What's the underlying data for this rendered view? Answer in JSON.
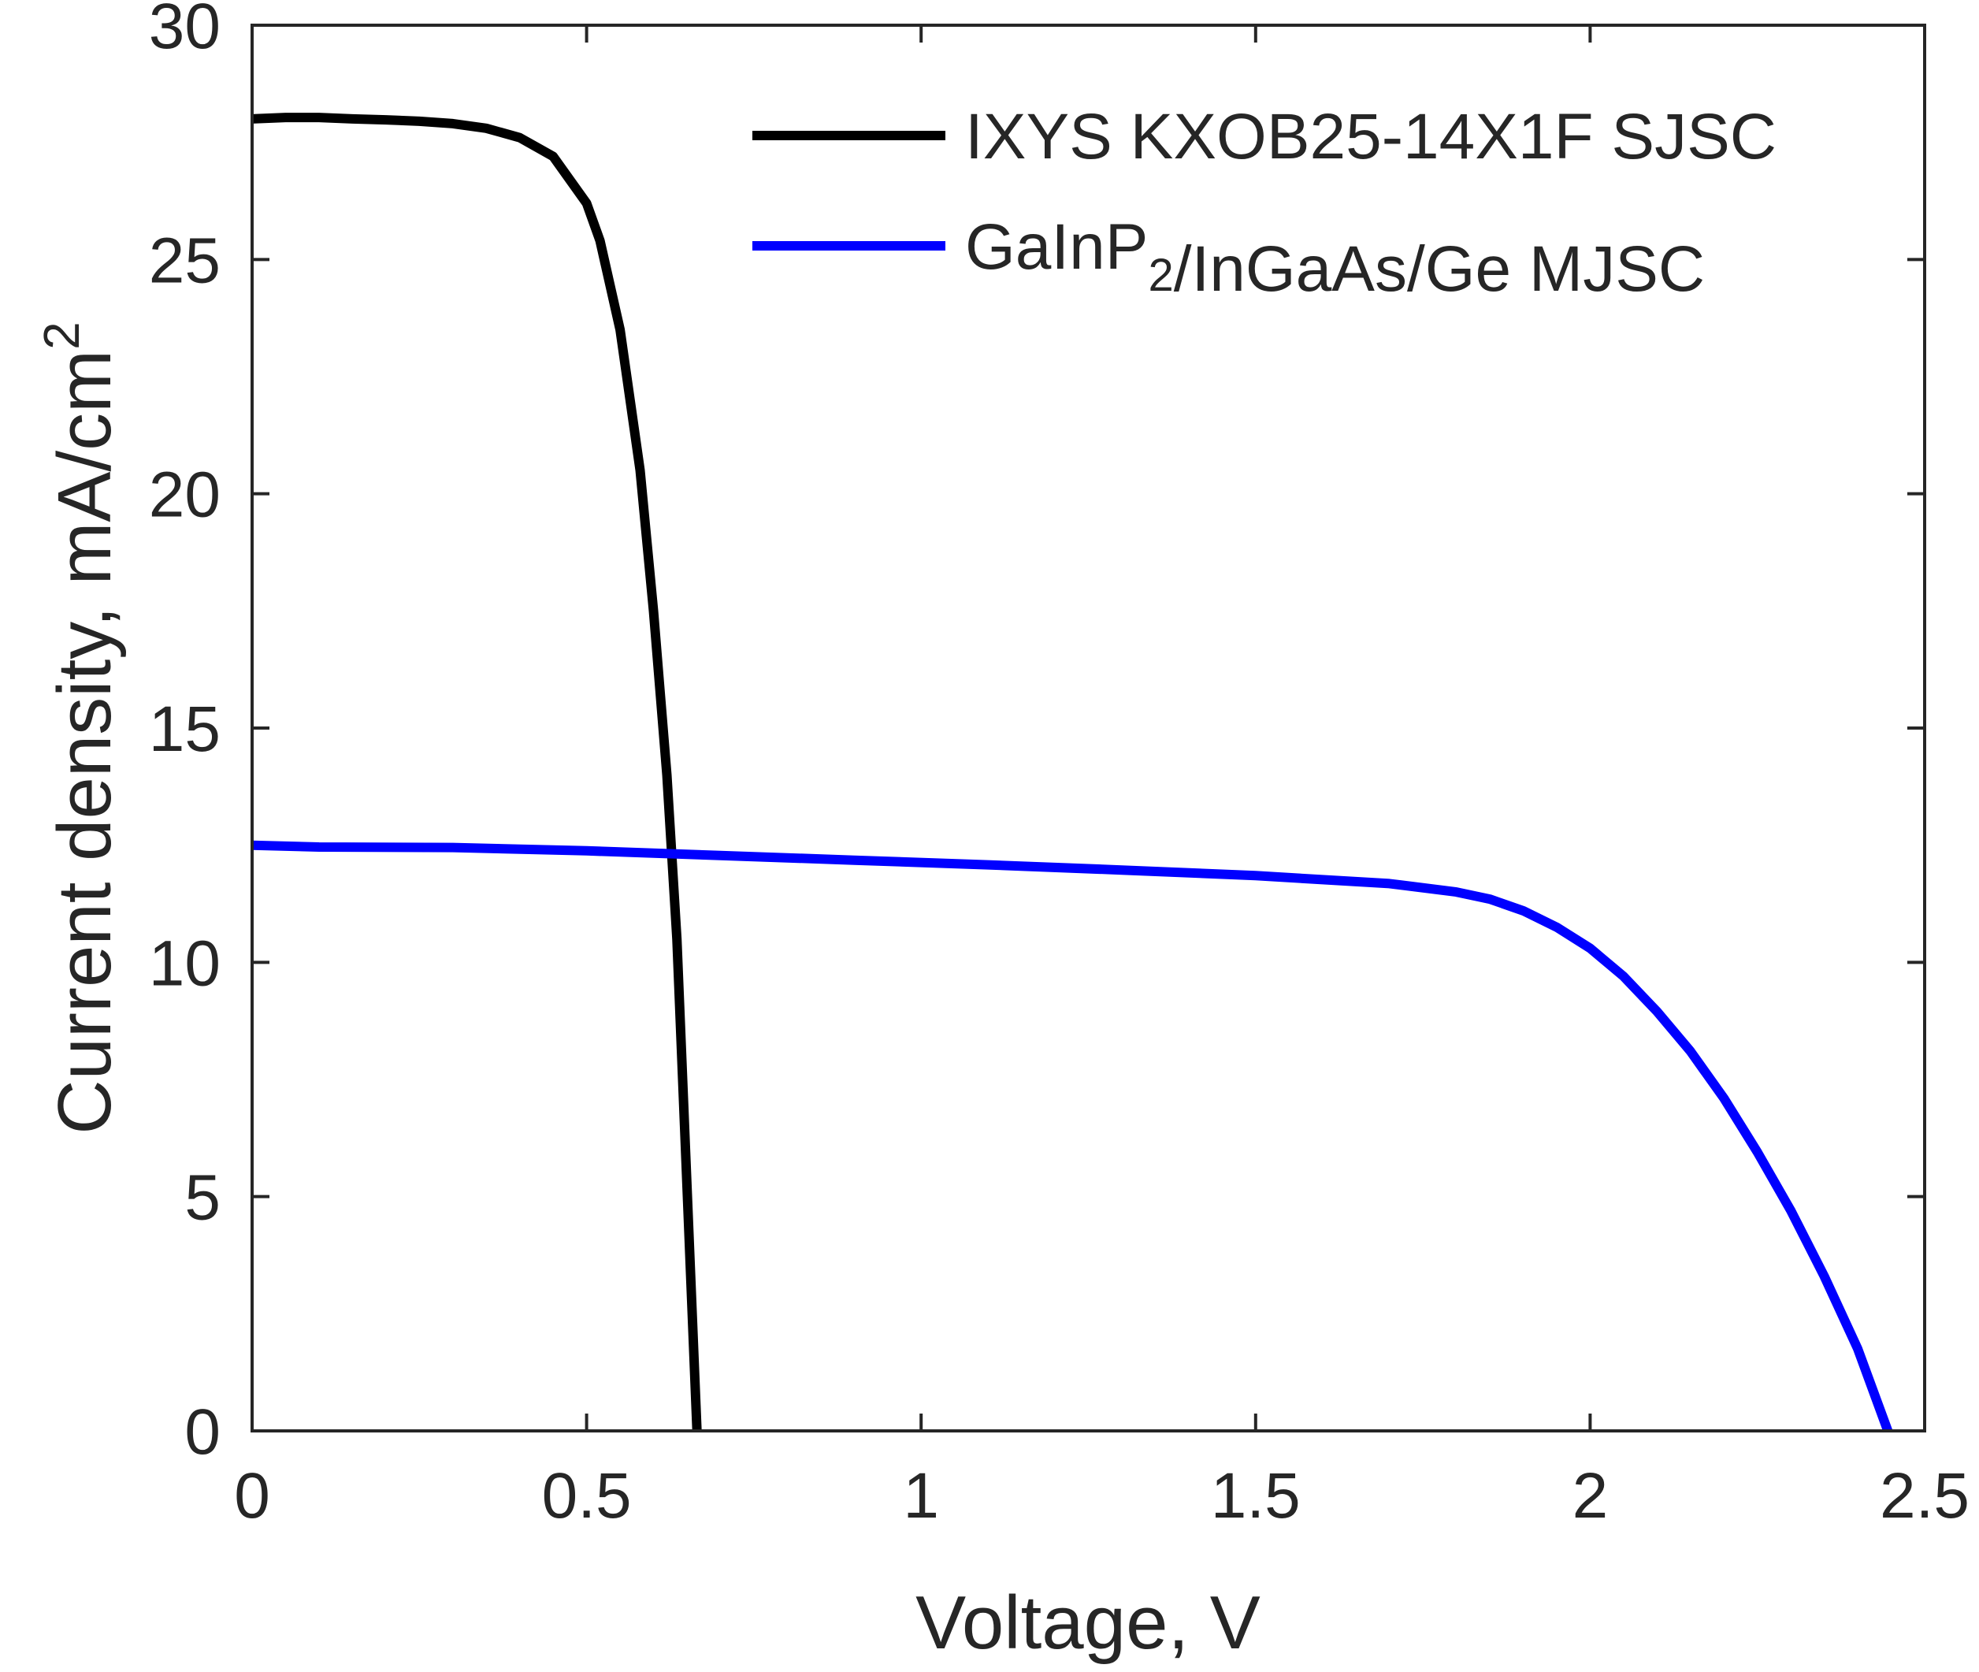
{
  "chart_data": {
    "type": "line",
    "title": "",
    "xlabel": "Voltage, V",
    "ylabel": "Current density, mA/cm",
    "ylabel_superscript": "2",
    "xlim": [
      0,
      2.5
    ],
    "ylim": [
      0,
      30
    ],
    "x_ticks": [
      0,
      0.5,
      1,
      1.5,
      2,
      2.5
    ],
    "x_tick_labels": [
      "0",
      "0.5",
      "1",
      "1.5",
      "2",
      "2.5"
    ],
    "y_ticks": [
      0,
      5,
      10,
      15,
      20,
      25,
      30
    ],
    "y_tick_labels": [
      "0",
      "5",
      "10",
      "15",
      "20",
      "25",
      "30"
    ],
    "grid": false,
    "legend_position": "top-right",
    "series": [
      {
        "name": "IXYS KXOB25-14X1F SJSC",
        "legend_parts": [
          {
            "text": "IXYS KXOB25-14X1F SJSC",
            "sub": ""
          }
        ],
        "color": "#000000",
        "points": [
          [
            0,
            28.0
          ],
          [
            0.05,
            28.03
          ],
          [
            0.1,
            28.03
          ],
          [
            0.15,
            28.0
          ],
          [
            0.2,
            27.98
          ],
          [
            0.25,
            27.95
          ],
          [
            0.3,
            27.9
          ],
          [
            0.35,
            27.8
          ],
          [
            0.4,
            27.6
          ],
          [
            0.45,
            27.2
          ],
          [
            0.5,
            26.2
          ],
          [
            0.52,
            25.4
          ],
          [
            0.55,
            23.5
          ],
          [
            0.58,
            20.5
          ],
          [
            0.6,
            17.5
          ],
          [
            0.62,
            14.0
          ],
          [
            0.635,
            10.5
          ],
          [
            0.645,
            7.0
          ],
          [
            0.655,
            3.5
          ],
          [
            0.665,
            0
          ]
        ]
      },
      {
        "name": "GaInP2/InGaAs/Ge MJSC",
        "legend_parts": [
          {
            "text": "GaInP",
            "sub": "2"
          },
          {
            "text": "/InGaAs/Ge MJSC",
            "sub": ""
          }
        ],
        "color": "#0000ff",
        "points": [
          [
            0,
            12.5
          ],
          [
            0.1,
            12.46
          ],
          [
            0.3,
            12.45
          ],
          [
            0.5,
            12.38
          ],
          [
            0.7,
            12.28
          ],
          [
            0.9,
            12.18
          ],
          [
            1.1,
            12.08
          ],
          [
            1.3,
            11.97
          ],
          [
            1.5,
            11.85
          ],
          [
            1.7,
            11.68
          ],
          [
            1.8,
            11.5
          ],
          [
            1.85,
            11.35
          ],
          [
            1.9,
            11.1
          ],
          [
            1.95,
            10.75
          ],
          [
            2.0,
            10.3
          ],
          [
            2.05,
            9.7
          ],
          [
            2.1,
            8.95
          ],
          [
            2.15,
            8.1
          ],
          [
            2.2,
            7.1
          ],
          [
            2.25,
            5.95
          ],
          [
            2.3,
            4.7
          ],
          [
            2.35,
            3.3
          ],
          [
            2.4,
            1.75
          ],
          [
            2.445,
            0
          ]
        ]
      }
    ]
  }
}
